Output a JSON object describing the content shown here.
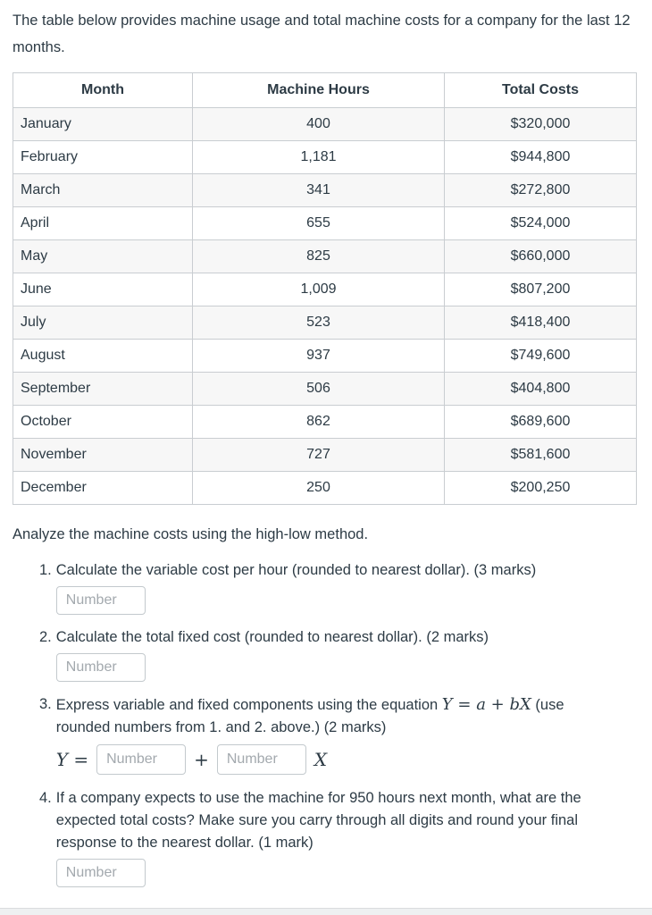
{
  "intro": "The table below provides machine usage and total machine costs for a company for the last 12 months.",
  "table": {
    "headers": [
      "Month",
      "Machine Hours",
      "Total Costs"
    ],
    "rows": [
      {
        "month": "January",
        "hours": "400",
        "cost": "$320,000"
      },
      {
        "month": "February",
        "hours": "1,181",
        "cost": "$944,800"
      },
      {
        "month": "March",
        "hours": "341",
        "cost": "$272,800"
      },
      {
        "month": "April",
        "hours": "655",
        "cost": "$524,000"
      },
      {
        "month": "May",
        "hours": "825",
        "cost": "$660,000"
      },
      {
        "month": "June",
        "hours": "1,009",
        "cost": "$807,200"
      },
      {
        "month": "July",
        "hours": "523",
        "cost": "$418,400"
      },
      {
        "month": "August",
        "hours": "937",
        "cost": "$749,600"
      },
      {
        "month": "September",
        "hours": "506",
        "cost": "$404,800"
      },
      {
        "month": "October",
        "hours": "862",
        "cost": "$689,600"
      },
      {
        "month": "November",
        "hours": "727",
        "cost": "$581,600"
      },
      {
        "month": "December",
        "hours": "250",
        "cost": "$200,250"
      }
    ]
  },
  "analysis_heading": "Analyze the machine costs using the high-low method.",
  "questions": {
    "q1": {
      "num": "1.",
      "text": "Calculate the variable cost per hour (rounded to nearest dollar). (3 marks)",
      "placeholder": "Number"
    },
    "q2": {
      "num": "2.",
      "text": "Calculate the total fixed cost (rounded to nearest dollar). (2 marks)",
      "placeholder": "Number"
    },
    "q3": {
      "num": "3.",
      "text_before": "Express variable and fixed components using the equation ",
      "equation": "Y = a + bX",
      "text_after": " (use rounded numbers from 1. and 2. above.) (2 marks)",
      "answer_y": "Y =",
      "plus": "+",
      "x": "X",
      "placeholder_a": "Number",
      "placeholder_b": "Number"
    },
    "q4": {
      "num": "4.",
      "text": "If a company expects to use the machine for 950 hours next month, what are the expected total costs? Make sure you carry through all digits and round your final response to the nearest dollar.  (1 mark)",
      "placeholder": "Number"
    }
  },
  "colors": {
    "text": "#2d3b45",
    "table_border": "#c9cdd1",
    "row_stripe": "#f7f7f7",
    "input_border": "#c3c9cd",
    "placeholder": "#a3a9ae"
  }
}
